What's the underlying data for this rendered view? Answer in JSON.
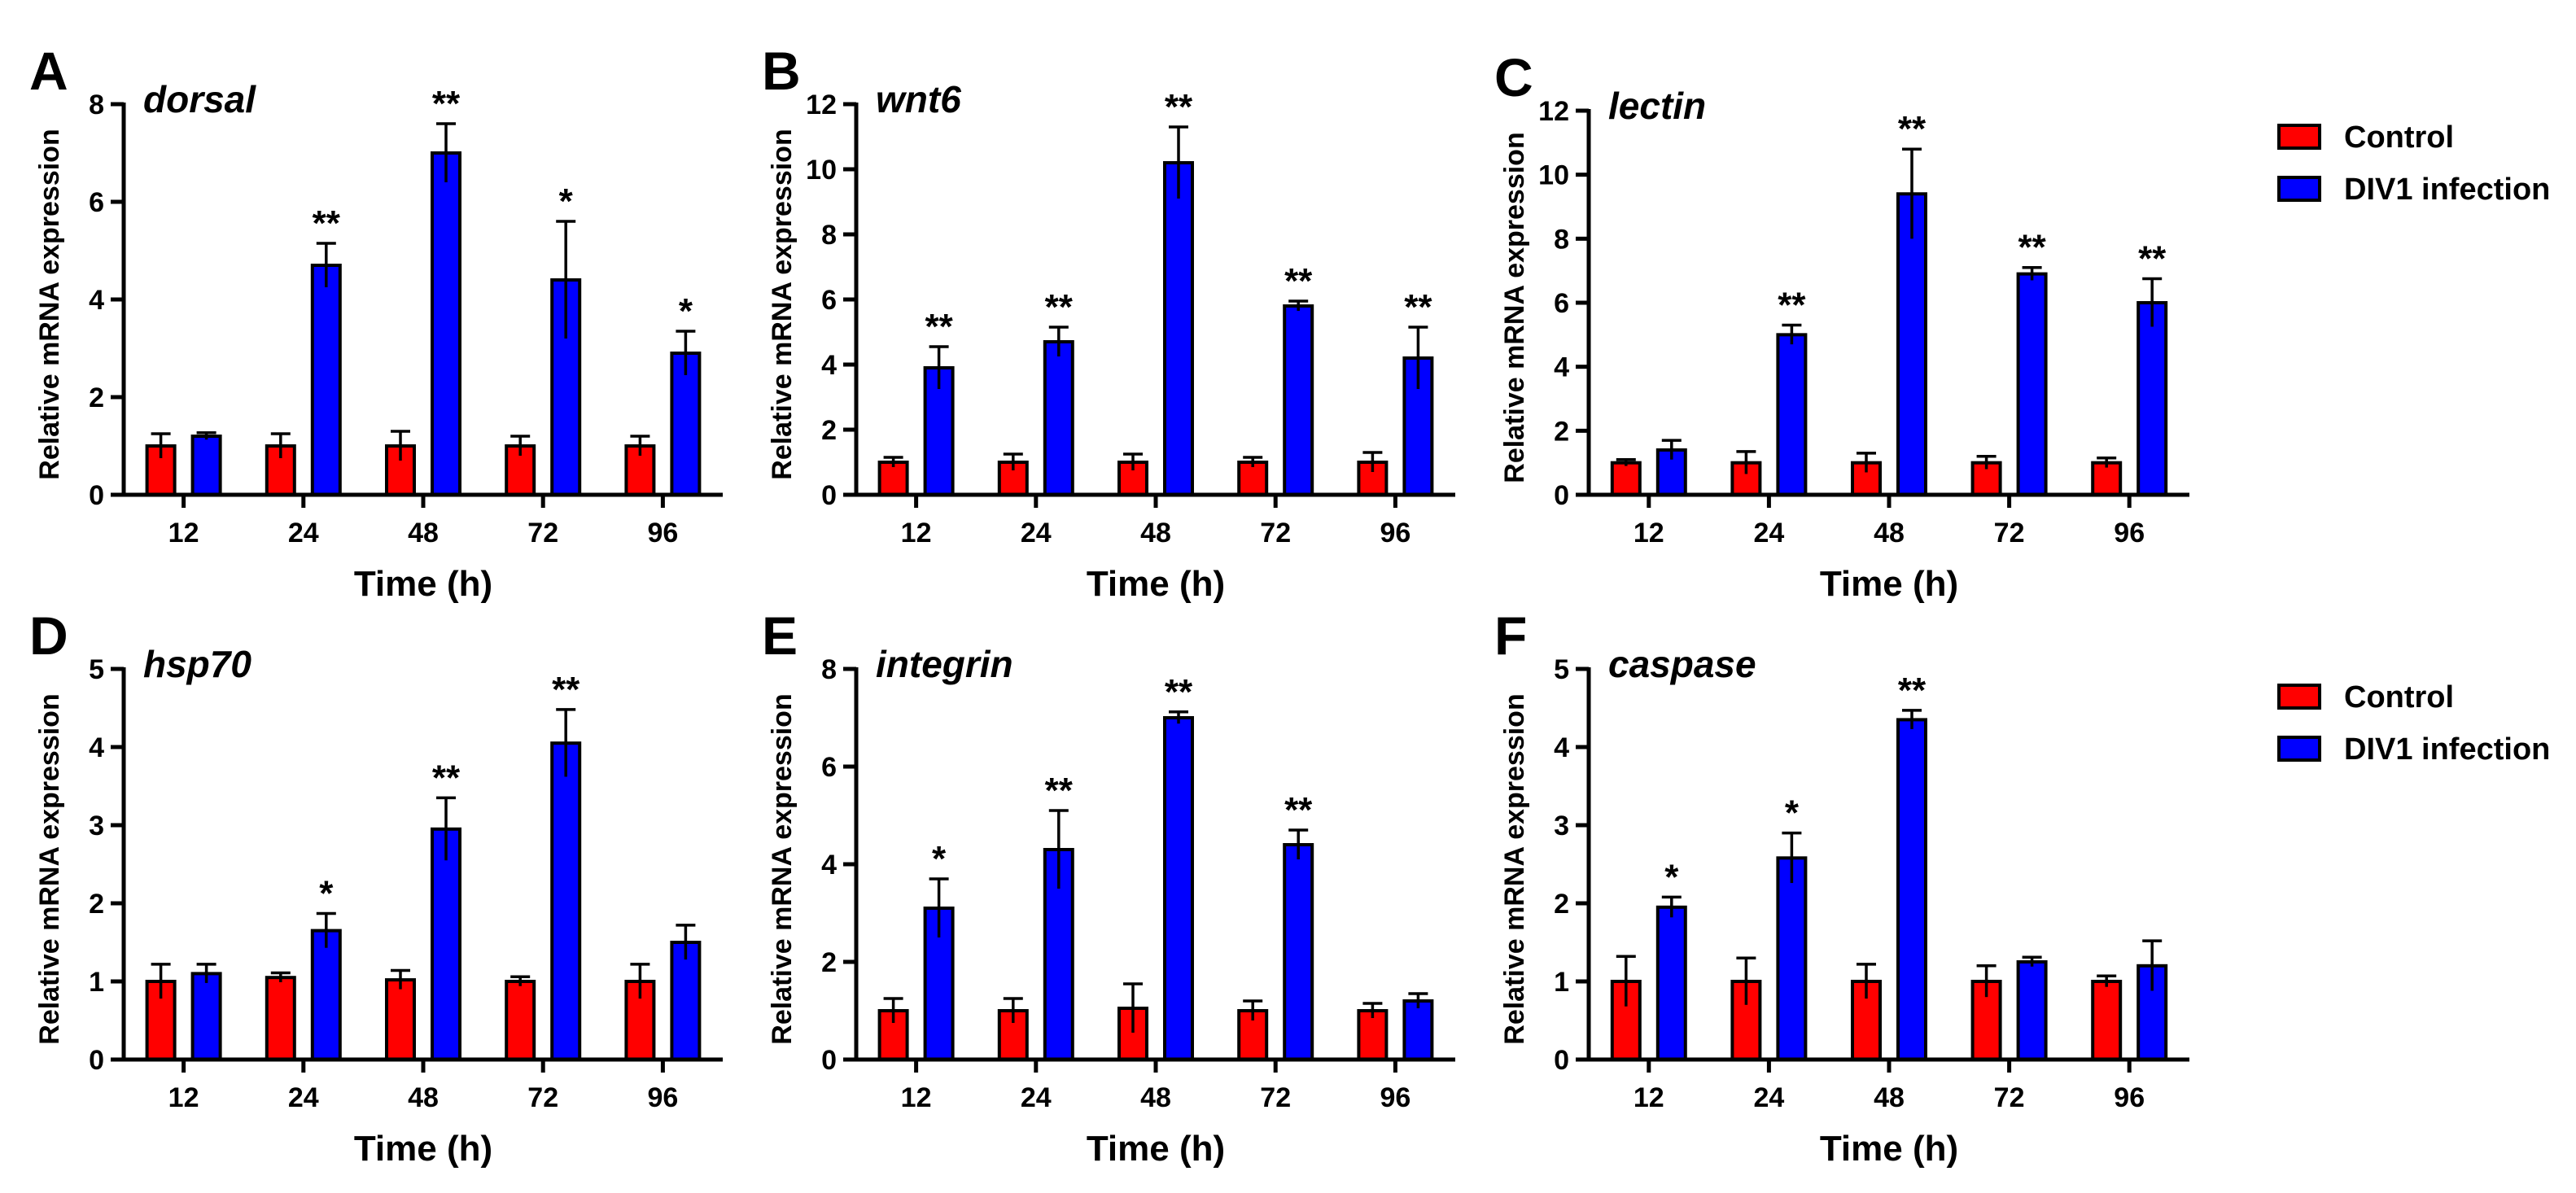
{
  "figure": {
    "legend": [
      {
        "label": "Control",
        "color": "#ff0000"
      },
      {
        "label": "DIV1 infection",
        "color": "#0000ff"
      }
    ],
    "bar_colors": {
      "control": "#ff0000",
      "infection": "#0000ff"
    }
  },
  "chart_data": [
    {
      "type": "bar",
      "panel": "A",
      "title": "dorsal",
      "xlabel": "Time (h)",
      "ylabel": "Relative mRNA expression",
      "categories": [
        "12",
        "24",
        "48",
        "72",
        "96"
      ],
      "ylim": [
        0,
        8
      ],
      "yticks": [
        "0",
        "2",
        "4",
        "6",
        "8"
      ],
      "series": [
        {
          "name": "Control",
          "values": [
            1.0,
            1.0,
            1.0,
            1.0,
            1.0
          ],
          "errors": [
            0.25,
            0.25,
            0.3,
            0.2,
            0.2
          ]
        },
        {
          "name": "DIV1 infection",
          "values": [
            1.2,
            4.7,
            7.0,
            4.4,
            2.9
          ],
          "errors": [
            0.07,
            0.45,
            0.6,
            1.2,
            0.45
          ]
        }
      ],
      "significance": [
        "",
        "**",
        "**",
        "*",
        "*"
      ]
    },
    {
      "type": "bar",
      "panel": "B",
      "title": "wnt6",
      "xlabel": "Time (h)",
      "ylabel": "Relative mRNA expression",
      "categories": [
        "12",
        "24",
        "48",
        "72",
        "96"
      ],
      "ylim": [
        0,
        12
      ],
      "yticks": [
        "0",
        "2",
        "4",
        "6",
        "8",
        "10",
        "12"
      ],
      "series": [
        {
          "name": "Control",
          "values": [
            1.0,
            1.0,
            1.0,
            1.0,
            1.0
          ],
          "errors": [
            0.15,
            0.25,
            0.25,
            0.15,
            0.3
          ]
        },
        {
          "name": "DIV1 infection",
          "values": [
            3.9,
            4.7,
            10.2,
            5.8,
            4.2
          ],
          "errors": [
            0.65,
            0.45,
            1.1,
            0.15,
            0.95
          ]
        }
      ],
      "significance": [
        "**",
        "**",
        "**",
        "**",
        "**"
      ]
    },
    {
      "type": "bar",
      "panel": "C",
      "title": "lectin",
      "xlabel": "Time (h)",
      "ylabel": "Relative mRNA expression",
      "categories": [
        "12",
        "24",
        "48",
        "72",
        "96"
      ],
      "ylim": [
        0,
        12
      ],
      "yticks": [
        "0",
        "2",
        "4",
        "6",
        "8",
        "10",
        "12"
      ],
      "series": [
        {
          "name": "Control",
          "values": [
            1.0,
            1.0,
            1.0,
            1.0,
            1.0
          ],
          "errors": [
            0.1,
            0.35,
            0.3,
            0.2,
            0.15
          ]
        },
        {
          "name": "DIV1 infection",
          "values": [
            1.4,
            5.0,
            9.4,
            6.9,
            6.0
          ],
          "errors": [
            0.3,
            0.3,
            1.4,
            0.2,
            0.75
          ]
        }
      ],
      "significance": [
        "",
        "**",
        "**",
        "**",
        "**"
      ]
    },
    {
      "type": "bar",
      "panel": "D",
      "title": "hsp70",
      "xlabel": "Time (h)",
      "ylabel": "Relative mRNA expression",
      "categories": [
        "12",
        "24",
        "48",
        "72",
        "96"
      ],
      "ylim": [
        0,
        5
      ],
      "yticks": [
        "0",
        "1",
        "2",
        "3",
        "4",
        "5"
      ],
      "series": [
        {
          "name": "Control",
          "values": [
            1.0,
            1.05,
            1.02,
            1.0,
            1.0
          ],
          "errors": [
            0.22,
            0.06,
            0.12,
            0.06,
            0.22
          ]
        },
        {
          "name": "DIV1 infection",
          "values": [
            1.1,
            1.65,
            2.95,
            4.05,
            1.5
          ],
          "errors": [
            0.12,
            0.22,
            0.4,
            0.43,
            0.22
          ]
        }
      ],
      "significance": [
        "",
        "*",
        "**",
        "**",
        ""
      ]
    },
    {
      "type": "bar",
      "panel": "E",
      "title": "integrin",
      "xlabel": "Time (h)",
      "ylabel": "Relative mRNA expression",
      "categories": [
        "12",
        "24",
        "48",
        "72",
        "96"
      ],
      "ylim": [
        0,
        8
      ],
      "yticks": [
        "0",
        "2",
        "4",
        "6",
        "8"
      ],
      "series": [
        {
          "name": "Control",
          "values": [
            1.0,
            1.0,
            1.05,
            1.0,
            1.0
          ],
          "errors": [
            0.25,
            0.25,
            0.5,
            0.2,
            0.15
          ]
        },
        {
          "name": "DIV1 infection",
          "values": [
            3.1,
            4.3,
            7.0,
            4.4,
            1.2
          ],
          "errors": [
            0.6,
            0.8,
            0.12,
            0.3,
            0.15
          ]
        }
      ],
      "significance": [
        "*",
        "**",
        "**",
        "**",
        ""
      ]
    },
    {
      "type": "bar",
      "panel": "F",
      "title": "caspase",
      "xlabel": "Time (h)",
      "ylabel": "Relative mRNA expression",
      "categories": [
        "12",
        "24",
        "48",
        "72",
        "96"
      ],
      "ylim": [
        0,
        5
      ],
      "yticks": [
        "0",
        "1",
        "2",
        "3",
        "4",
        "5"
      ],
      "series": [
        {
          "name": "Control",
          "values": [
            1.0,
            1.0,
            1.0,
            1.0,
            1.0
          ],
          "errors": [
            0.32,
            0.3,
            0.22,
            0.2,
            0.07
          ]
        },
        {
          "name": "DIV1 infection",
          "values": [
            1.95,
            2.58,
            4.35,
            1.25,
            1.2
          ],
          "errors": [
            0.13,
            0.32,
            0.12,
            0.06,
            0.32
          ]
        }
      ],
      "significance": [
        "*",
        "*",
        "**",
        "",
        ""
      ]
    }
  ]
}
